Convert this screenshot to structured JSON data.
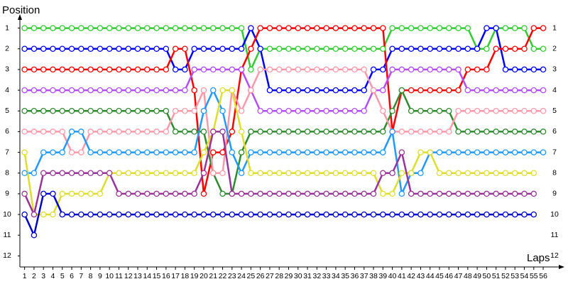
{
  "chart_data": {
    "type": "line",
    "y_label": "Position",
    "x_label": "Laps",
    "x": [
      1,
      2,
      3,
      4,
      5,
      6,
      7,
      8,
      9,
      10,
      11,
      12,
      13,
      14,
      15,
      16,
      17,
      18,
      19,
      20,
      21,
      22,
      23,
      24,
      25,
      26,
      27,
      28,
      29,
      30,
      31,
      32,
      33,
      34,
      35,
      36,
      37,
      38,
      39,
      40,
      41,
      42,
      43,
      44,
      45,
      46,
      47,
      48,
      49,
      50,
      51,
      52,
      53,
      54,
      55,
      56
    ],
    "xlim": [
      0.5,
      57.5
    ],
    "xticks": [
      1,
      2,
      3,
      4,
      5,
      6,
      7,
      8,
      9,
      10,
      11,
      12,
      13,
      14,
      15,
      16,
      17,
      18,
      19,
      20,
      21,
      22,
      23,
      24,
      25,
      26,
      27,
      28,
      29,
      30,
      31,
      32,
      33,
      34,
      35,
      36,
      37,
      38,
      39,
      40,
      41,
      42,
      43,
      44,
      45,
      46,
      47,
      48,
      49,
      50,
      51,
      52,
      53,
      54,
      55,
      56
    ],
    "ylim": [
      12.5,
      0.5
    ],
    "yticks": [
      1,
      2,
      3,
      4,
      5,
      6,
      7,
      8,
      9,
      10,
      11,
      12
    ],
    "grid": false,
    "series": [
      {
        "color": "#33cc33",
        "values": [
          1,
          1,
          1,
          1,
          1,
          1,
          1,
          1,
          1,
          1,
          1,
          1,
          1,
          1,
          1,
          1,
          1,
          1,
          1,
          1,
          1,
          1,
          1,
          1,
          3,
          2,
          2,
          2,
          2,
          2,
          2,
          2,
          2,
          2,
          2,
          2,
          2,
          2,
          2,
          1,
          1,
          1,
          1,
          1,
          1,
          1,
          1,
          1,
          2,
          2,
          1,
          1,
          1,
          1,
          2,
          2
        ]
      },
      {
        "color": "#0000ff",
        "values": [
          2,
          2,
          2,
          2,
          2,
          2,
          2,
          2,
          2,
          2,
          2,
          2,
          2,
          2,
          2,
          2,
          3,
          3,
          2,
          2,
          2,
          2,
          2,
          2,
          1,
          2,
          4,
          4,
          4,
          4,
          4,
          4,
          4,
          4,
          4,
          4,
          4,
          3,
          3,
          2,
          2,
          2,
          2,
          2,
          2,
          2,
          2,
          2,
          2,
          1,
          1,
          3,
          3,
          3,
          3,
          3
        ]
      },
      {
        "color": "#ff0000",
        "values": [
          3,
          3,
          3,
          3,
          3,
          3,
          3,
          3,
          3,
          3,
          3,
          3,
          3,
          3,
          3,
          3,
          2,
          2,
          4,
          9,
          7,
          7,
          6,
          3,
          2,
          1,
          1,
          1,
          1,
          1,
          1,
          1,
          1,
          1,
          1,
          1,
          1,
          1,
          1,
          6,
          4,
          4,
          4,
          4,
          4,
          4,
          4,
          3,
          3,
          3,
          2,
          2,
          2,
          2,
          1,
          1
        ]
      },
      {
        "color": "#b44cff",
        "values": [
          4,
          4,
          4,
          4,
          4,
          4,
          4,
          4,
          4,
          4,
          4,
          4,
          4,
          4,
          4,
          4,
          4,
          4,
          3,
          3,
          3,
          3,
          3,
          3,
          4,
          5,
          5,
          5,
          5,
          5,
          5,
          5,
          5,
          5,
          5,
          5,
          5,
          4,
          4,
          3,
          3,
          3,
          3,
          3,
          3,
          3,
          3,
          4,
          4,
          4,
          4,
          4,
          4,
          4,
          4,
          4
        ]
      },
      {
        "color": "#2e8b2e",
        "values": [
          5,
          5,
          5,
          5,
          5,
          5,
          5,
          5,
          5,
          5,
          5,
          5,
          5,
          5,
          5,
          5,
          6,
          6,
          6,
          6,
          8,
          9,
          9,
          7,
          6,
          6,
          6,
          6,
          6,
          6,
          6,
          6,
          6,
          6,
          6,
          6,
          6,
          6,
          6,
          5,
          4,
          5,
          5,
          5,
          5,
          5,
          6,
          6,
          6,
          6,
          6,
          6,
          6,
          6,
          6,
          6
        ]
      },
      {
        "color": "#ff99aa",
        "values": [
          6,
          6,
          6,
          6,
          6,
          7,
          7,
          6,
          6,
          6,
          6,
          6,
          6,
          6,
          6,
          6,
          5,
          5,
          5,
          4,
          8,
          8,
          4,
          5,
          4,
          3,
          3,
          3,
          3,
          3,
          3,
          3,
          3,
          3,
          3,
          3,
          3,
          4,
          5,
          6,
          6,
          6,
          6,
          6,
          6,
          6,
          5,
          5,
          5,
          5,
          5,
          5,
          5,
          5,
          5,
          5
        ]
      },
      {
        "color": "#2299ff",
        "values": [
          8,
          8,
          7,
          7,
          7,
          6,
          6,
          7,
          7,
          7,
          7,
          7,
          7,
          7,
          7,
          7,
          7,
          7,
          7,
          5,
          4,
          5,
          7,
          8,
          7,
          7,
          7,
          7,
          7,
          7,
          7,
          7,
          7,
          7,
          7,
          7,
          7,
          7,
          7,
          6,
          9,
          8,
          8,
          7,
          7,
          7,
          7,
          7,
          7,
          7,
          7,
          7,
          7,
          7,
          7,
          7
        ]
      },
      {
        "color": "#dede2e",
        "values": [
          7,
          10,
          10,
          10,
          9,
          9,
          9,
          9,
          9,
          8,
          8,
          8,
          8,
          8,
          8,
          8,
          8,
          8,
          8,
          7,
          6,
          4,
          4,
          6,
          8,
          8,
          8,
          8,
          8,
          8,
          8,
          8,
          8,
          8,
          8,
          8,
          8,
          8,
          9,
          9,
          8,
          8,
          7,
          7,
          8,
          8,
          8,
          8,
          8,
          8,
          8,
          8,
          8,
          8,
          8,
          null
        ]
      },
      {
        "color": "#993399",
        "values": [
          9,
          10,
          8,
          8,
          8,
          8,
          8,
          8,
          8,
          8,
          9,
          9,
          9,
          9,
          9,
          9,
          9,
          9,
          9,
          8,
          6,
          6,
          9,
          9,
          9,
          9,
          9,
          9,
          9,
          9,
          9,
          9,
          9,
          9,
          9,
          9,
          9,
          9,
          8,
          8,
          7,
          9,
          9,
          9,
          9,
          9,
          9,
          9,
          9,
          9,
          9,
          9,
          9,
          9,
          9,
          null
        ]
      },
      {
        "color": "#0000cc",
        "values": [
          10,
          11,
          9,
          9,
          10,
          10,
          10,
          10,
          10,
          10,
          10,
          10,
          10,
          10,
          10,
          10,
          10,
          10,
          10,
          10,
          10,
          10,
          10,
          10,
          10,
          10,
          10,
          10,
          10,
          10,
          10,
          10,
          10,
          10,
          10,
          10,
          10,
          10,
          10,
          10,
          10,
          10,
          10,
          10,
          10,
          10,
          10,
          10,
          10,
          10,
          10,
          10,
          10,
          10,
          10,
          null
        ]
      }
    ]
  }
}
